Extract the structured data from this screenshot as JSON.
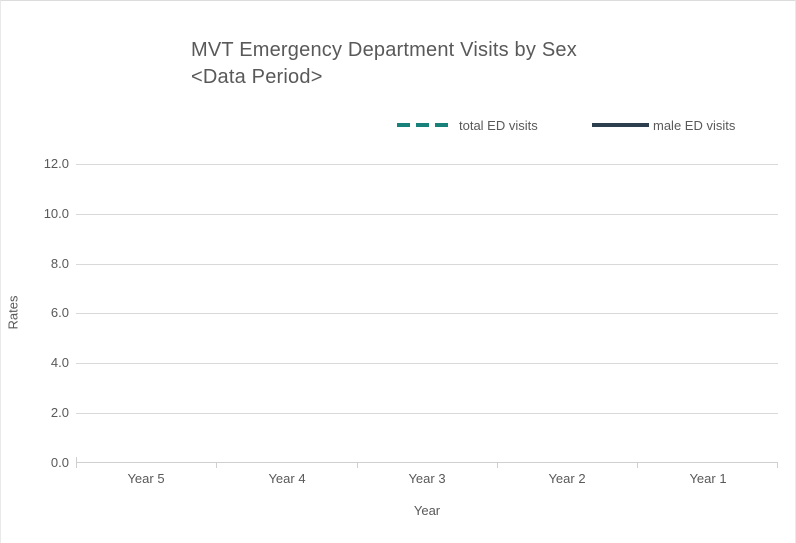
{
  "title": {
    "line1": "MVT Emergency Department Visits by Sex",
    "line2": "<Data Period>"
  },
  "legend": {
    "items": [
      {
        "label": "total ED visits",
        "style": "dashed",
        "color": "#17817a"
      },
      {
        "label": "male ED visits",
        "style": "solid",
        "color": "#2d3e4f"
      }
    ]
  },
  "axes": {
    "y_title": "Rates",
    "x_title": "Year",
    "y_tick_labels": [
      "12.0",
      "10.0",
      "8.0",
      "6.0",
      "4.0",
      "2.0",
      "0.0"
    ],
    "x_tick_labels": [
      "Year 5",
      "Year 4",
      "Year 3",
      "Year 2",
      "Year 1"
    ]
  },
  "colors": {
    "total_series": "#17817a",
    "male_series": "#2d3e4f",
    "gridline": "#d9d9d9",
    "axis_line": "#cfcfcf",
    "text": "#595959",
    "background": "#ffffff"
  },
  "chart_data": {
    "type": "line",
    "title": "MVT Emergency Department Visits by Sex <Data Period>",
    "categories": [
      "Year 5",
      "Year 4",
      "Year 3",
      "Year 2",
      "Year 1"
    ],
    "series": [
      {
        "name": "total ED visits",
        "line_style": "dashed",
        "color": "#17817a",
        "values": []
      },
      {
        "name": "male ED visits",
        "line_style": "solid",
        "color": "#2d3e4f",
        "values": []
      }
    ],
    "xlabel": "Year",
    "ylabel": "Rates",
    "ylim": [
      0,
      12
    ],
    "ytick_step": 2,
    "grid": true,
    "legend_position": "top",
    "notes": "no data series plotted; empty chart template"
  }
}
